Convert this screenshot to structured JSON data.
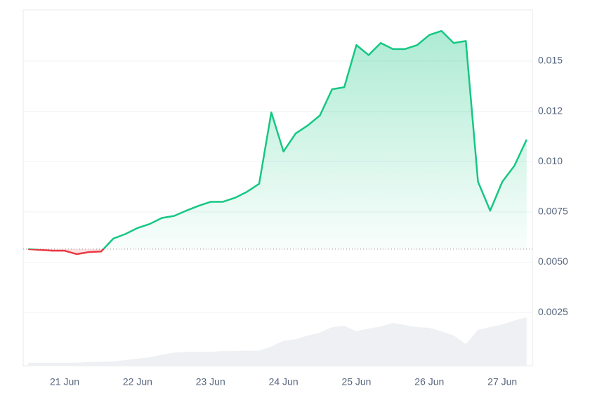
{
  "chart_data": {
    "type": "line",
    "categories": [
      null,
      null,
      null,
      "21 Jun",
      null,
      null,
      null,
      null,
      null,
      "22 Jun",
      null,
      null,
      null,
      null,
      null,
      "23 Jun",
      null,
      null,
      null,
      null,
      null,
      "24 Jun",
      null,
      null,
      null,
      null,
      null,
      "25 Jun",
      null,
      null,
      null,
      null,
      null,
      "26 Jun",
      null,
      null,
      null,
      null,
      null,
      "27 Jun",
      null,
      null
    ],
    "values": [
      0.00565,
      0.00561,
      0.00557,
      0.00557,
      0.0054,
      0.0055,
      0.00553,
      0.00617,
      0.0064,
      0.0067,
      0.0069,
      0.0072,
      0.0073,
      0.00756,
      0.0078,
      0.008,
      0.008,
      0.0082,
      0.0085,
      0.0089,
      0.01245,
      0.0105,
      0.0114,
      0.0118,
      0.0123,
      0.0136,
      0.0137,
      0.0158,
      0.0153,
      0.0159,
      0.0156,
      0.0156,
      0.0158,
      0.0163,
      0.0165,
      0.0159,
      0.016,
      0.009,
      0.00756,
      0.009,
      0.0098,
      0.0111
    ],
    "volume": [
      0,
      0,
      0,
      0,
      0,
      3e-05,
      5e-05,
      6e-05,
      0.00013,
      0.0002,
      0.00027,
      0.0004,
      0.0005,
      0.00054,
      0.00054,
      0.00054,
      0.00058,
      0.00058,
      0.0006,
      0.0006,
      0.0008,
      0.0011,
      0.00117,
      0.00135,
      0.0015,
      0.00177,
      0.00184,
      0.00156,
      0.0017,
      0.0018,
      0.00198,
      0.00187,
      0.00177,
      0.00173,
      0.00156,
      0.00135,
      0.00093,
      0.00163,
      0.00177,
      0.0019,
      0.0021,
      0.00226
    ],
    "baseline": 0.00565,
    "up_color": "#16c784",
    "down_color": "#ea3943",
    "volume_color": "#eef0f3",
    "ylim": [
      -0.00015,
      0.01755
    ],
    "yticks": [
      0.0025,
      {
        "value": 0.005,
        "label": "0.0050"
      },
      0.0075,
      {
        "value": 0.01,
        "label": "0.010"
      },
      {
        "value": 0.0125,
        "label": "0.012"
      },
      0.015
    ],
    "grid": true
  }
}
